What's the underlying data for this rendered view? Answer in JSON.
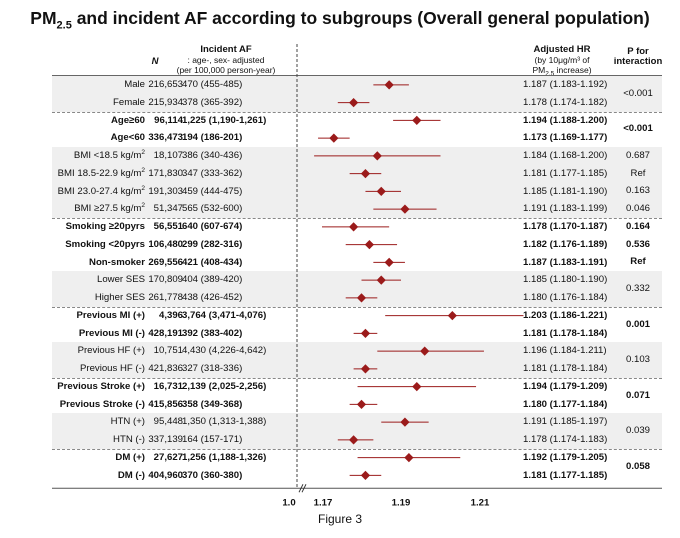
{
  "title": {
    "pre": "PM",
    "sub": "2.5",
    "post": " and incident AF according to subgroups (Overall general population)"
  },
  "headers": {
    "n": "N",
    "incident_title": "Incident AF",
    "incident_sub1": ": age-, sex- adjusted",
    "incident_sub2": "(per 100,000 person-year)",
    "hr_title": "Adjusted HR",
    "hr_sub1": "(by 10μg/m³ of",
    "hr_sub2_pre": "PM",
    "hr_sub2_sub": "2.5",
    "hr_sub2_post": " increase)",
    "p_title1": "P for",
    "p_title2": "interaction"
  },
  "caption": "Figure 3",
  "chart_data": {
    "type": "forest",
    "x_ticks": [
      "1.0",
      "1.17",
      "1.19",
      "1.21"
    ],
    "x_break": true,
    "reference_line": 1.0,
    "marker_color": "#9b1b1b",
    "rows": [
      {
        "label": "Male",
        "n": "216,653",
        "incidence": "470 (455-485)",
        "hr_text": "1.187 (1.183-1.192)",
        "hr": 1.187,
        "lo": 1.183,
        "hi": 1.192,
        "bold": false
      },
      {
        "label": "Female",
        "n": "215,934",
        "incidence": "378 (365-392)",
        "hr_text": "1.178 (1.174-1.182)",
        "hr": 1.178,
        "lo": 1.174,
        "hi": 1.182,
        "bold": false
      },
      {
        "label": "Age≥60",
        "n": "96,114",
        "incidence": "1,225 (1,190-1,261)",
        "hr_text": "1.194 (1.188-1.200)",
        "hr": 1.194,
        "lo": 1.188,
        "hi": 1.2,
        "bold": true
      },
      {
        "label": "Age<60",
        "n": "336,473",
        "incidence": "194 (186-201)",
        "hr_text": "1.173 (1.169-1.177)",
        "hr": 1.173,
        "lo": 1.169,
        "hi": 1.177,
        "bold": true
      },
      {
        "label": "BMI <18.5 kg/m²",
        "n": "18,107",
        "incidence": "386 (340-436)",
        "hr_text": "1.184 (1.168-1.200)",
        "hr": 1.184,
        "lo": 1.168,
        "hi": 1.2,
        "bold": false
      },
      {
        "label": "BMI 18.5-22.9 kg/m²",
        "n": "171,830",
        "incidence": "347 (333-362)",
        "hr_text": "1.181 (1.177-1.185)",
        "hr": 1.181,
        "lo": 1.177,
        "hi": 1.185,
        "bold": false
      },
      {
        "label": "BMI 23.0-27.4 kg/m²",
        "n": "191,303",
        "incidence": "459 (444-475)",
        "hr_text": "1.185 (1.181-1.190)",
        "hr": 1.185,
        "lo": 1.181,
        "hi": 1.19,
        "bold": false
      },
      {
        "label": "BMI ≥27.5 kg/m²",
        "n": "51,347",
        "incidence": "565 (532-600)",
        "hr_text": "1.191 (1.183-1.199)",
        "hr": 1.191,
        "lo": 1.183,
        "hi": 1.199,
        "bold": false
      },
      {
        "label": "Smoking ≥20pyrs",
        "n": "56,551",
        "incidence": "640 (607-674)",
        "hr_text": "1.178 (1.170-1.187)",
        "hr": 1.178,
        "lo": 1.17,
        "hi": 1.187,
        "bold": true
      },
      {
        "label": "Smoking <20pyrs",
        "n": "106,480",
        "incidence": "299 (282-316)",
        "hr_text": "1.182 (1.176-1.189)",
        "hr": 1.182,
        "lo": 1.176,
        "hi": 1.189,
        "bold": true
      },
      {
        "label": "Non-smoker",
        "n": "269,556",
        "incidence": "421 (408-434)",
        "hr_text": "1.187 (1.183-1.191)",
        "hr": 1.187,
        "lo": 1.183,
        "hi": 1.191,
        "bold": true
      },
      {
        "label": "Lower SES",
        "n": "170,809",
        "incidence": "404 (389-420)",
        "hr_text": "1.185 (1.180-1.190)",
        "hr": 1.185,
        "lo": 1.18,
        "hi": 1.19,
        "bold": false
      },
      {
        "label": "Higher SES",
        "n": "261,778",
        "incidence": "438 (426-452)",
        "hr_text": "1.180 (1.176-1.184)",
        "hr": 1.18,
        "lo": 1.176,
        "hi": 1.184,
        "bold": false
      },
      {
        "label": "Previous MI (+)",
        "n": "4,396",
        "incidence": "3,764 (3,471-4,076)",
        "hr_text": "1.203 (1.186-1.221)",
        "hr": 1.203,
        "lo": 1.186,
        "hi": 1.221,
        "bold": true
      },
      {
        "label": "Previous MI (-)",
        "n": "428,191",
        "incidence": "392 (383-402)",
        "hr_text": "1.181 (1.178-1.184)",
        "hr": 1.181,
        "lo": 1.178,
        "hi": 1.184,
        "bold": true
      },
      {
        "label": "Previous HF (+)",
        "n": "10,751",
        "incidence": "4,430 (4,226-4,642)",
        "hr_text": "1.196 (1.184-1.211)",
        "hr": 1.196,
        "lo": 1.184,
        "hi": 1.211,
        "bold": false
      },
      {
        "label": "Previous HF (-)",
        "n": "421,836",
        "incidence": "327 (318-336)",
        "hr_text": "1.181 (1.178-1.184)",
        "hr": 1.181,
        "lo": 1.178,
        "hi": 1.184,
        "bold": false
      },
      {
        "label": "Previous Stroke (+)",
        "n": "16,731",
        "incidence": "2,139 (2,025-2,256)",
        "hr_text": "1.194 (1.179-1.209)",
        "hr": 1.194,
        "lo": 1.179,
        "hi": 1.209,
        "bold": true
      },
      {
        "label": "Previous Stroke (-)",
        "n": "415,856",
        "incidence": "358 (349-368)",
        "hr_text": "1.180 (1.177-1.184)",
        "hr": 1.18,
        "lo": 1.177,
        "hi": 1.184,
        "bold": true
      },
      {
        "label": "HTN (+)",
        "n": "95,448",
        "incidence": "1,350 (1,313-1,388)",
        "hr_text": "1.191 (1.185-1.197)",
        "hr": 1.191,
        "lo": 1.185,
        "hi": 1.197,
        "bold": false
      },
      {
        "label": "HTN (-)",
        "n": "337,139",
        "incidence": "164 (157-171)",
        "hr_text": "1.178 (1.174-1.183)",
        "hr": 1.178,
        "lo": 1.174,
        "hi": 1.183,
        "bold": false
      },
      {
        "label": "DM (+)",
        "n": "27,627",
        "incidence": "1,256 (1,188-1,326)",
        "hr_text": "1.192 (1.179-1.205)",
        "hr": 1.192,
        "lo": 1.179,
        "hi": 1.205,
        "bold": true
      },
      {
        "label": "DM (-)",
        "n": "404,960",
        "incidence": "370 (360-380)",
        "hr_text": "1.181 (1.177-1.185)",
        "hr": 1.181,
        "lo": 1.177,
        "hi": 1.185,
        "bold": true
      }
    ],
    "groups": [
      {
        "name": "sex",
        "rows": [
          0,
          1
        ],
        "p": "<0.001",
        "shaded": true,
        "bold": false
      },
      {
        "name": "age",
        "rows": [
          2,
          3
        ],
        "p": "<0.001",
        "shaded": false,
        "bold": true
      },
      {
        "name": "bmi",
        "rows": [
          4,
          5,
          6,
          7
        ],
        "p_each": [
          "0.687",
          "Ref",
          "0.163",
          "0.046"
        ],
        "shaded": true,
        "bold": false
      },
      {
        "name": "smoking",
        "rows": [
          8,
          9,
          10
        ],
        "p_each": [
          "0.164",
          "0.536",
          "Ref"
        ],
        "shaded": false,
        "bold": true
      },
      {
        "name": "ses",
        "rows": [
          11,
          12
        ],
        "p": "0.332",
        "shaded": true,
        "bold": false
      },
      {
        "name": "mi",
        "rows": [
          13,
          14
        ],
        "p": "0.001",
        "shaded": false,
        "bold": true
      },
      {
        "name": "hf",
        "rows": [
          15,
          16
        ],
        "p": "0.103",
        "shaded": true,
        "bold": false
      },
      {
        "name": "stroke",
        "rows": [
          17,
          18
        ],
        "p": "0.071",
        "shaded": false,
        "bold": true
      },
      {
        "name": "htn",
        "rows": [
          19,
          20
        ],
        "p": "0.039",
        "shaded": true,
        "bold": false
      },
      {
        "name": "dm",
        "rows": [
          21,
          22
        ],
        "p": "0.058",
        "shaded": false,
        "bold": true
      }
    ]
  }
}
